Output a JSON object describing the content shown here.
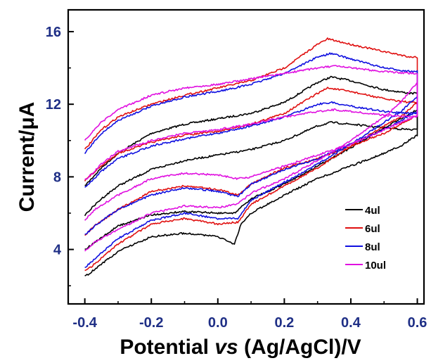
{
  "chart_data": {
    "type": "line",
    "title": "",
    "xlabel_main": "Potential ",
    "xlabel_italic": "vs",
    "xlabel_rest": " (Ag/AgCl)/V",
    "ylabel": "Current/μA",
    "xlim": [
      -0.45,
      0.62
    ],
    "ylim": [
      1.0,
      17.2
    ],
    "xticks": [
      -0.4,
      -0.2,
      0.0,
      0.2,
      0.4,
      0.6
    ],
    "xtick_labels": [
      "-0.4",
      "-0.2",
      "0.0",
      "0.2",
      "0.4",
      "0.6"
    ],
    "yticks": [
      4,
      8,
      12,
      16
    ],
    "ytick_labels": [
      "4",
      "8",
      "12",
      "16"
    ],
    "grid": false,
    "legend_position": "bottom-right",
    "colors": {
      "axis": "#000000",
      "tick_labels": "#1f2f86"
    },
    "series": [
      {
        "name": "4ul",
        "color": "#000000",
        "loops": [
          {
            "forward": [
              [
                -0.4,
                7.5
              ],
              [
                -0.35,
                8.5
              ],
              [
                -0.3,
                9.3
              ],
              [
                -0.2,
                10.4
              ],
              [
                -0.1,
                10.9
              ],
              [
                0.0,
                11.2
              ],
              [
                0.1,
                11.5
              ],
              [
                0.2,
                12.1
              ],
              [
                0.3,
                13.2
              ],
              [
                0.34,
                13.5
              ],
              [
                0.4,
                13.3
              ],
              [
                0.5,
                12.8
              ],
              [
                0.58,
                12.6
              ],
              [
                0.6,
                12.6
              ]
            ],
            "reverse": [
              [
                0.6,
                10.3
              ],
              [
                0.55,
                9.7
              ],
              [
                0.5,
                9.3
              ],
              [
                0.4,
                8.6
              ],
              [
                0.3,
                7.9
              ],
              [
                0.2,
                7.0
              ],
              [
                0.1,
                6.0
              ],
              [
                0.07,
                5.4
              ],
              [
                0.05,
                4.3
              ],
              [
                0.0,
                4.7
              ],
              [
                -0.1,
                4.9
              ],
              [
                -0.2,
                4.7
              ],
              [
                -0.3,
                3.9
              ],
              [
                -0.37,
                2.9
              ],
              [
                -0.4,
                2.5
              ]
            ]
          },
          {
            "forward": [
              [
                -0.4,
                5.9
              ],
              [
                -0.35,
                6.8
              ],
              [
                -0.3,
                7.5
              ],
              [
                -0.2,
                8.4
              ],
              [
                -0.1,
                8.9
              ],
              [
                0.0,
                9.2
              ],
              [
                0.1,
                9.5
              ],
              [
                0.2,
                10.0
              ],
              [
                0.3,
                10.8
              ],
              [
                0.34,
                11.0
              ],
              [
                0.4,
                10.9
              ],
              [
                0.5,
                10.7
              ],
              [
                0.58,
                10.6
              ],
              [
                0.6,
                10.6
              ]
            ],
            "reverse": [
              [
                0.6,
                11.7
              ],
              [
                0.55,
                11.2
              ],
              [
                0.5,
                10.7
              ],
              [
                0.4,
                9.6
              ],
              [
                0.3,
                8.6
              ],
              [
                0.2,
                7.6
              ],
              [
                0.1,
                6.8
              ],
              [
                0.05,
                6.0
              ],
              [
                0.0,
                6.0
              ],
              [
                -0.1,
                6.1
              ],
              [
                -0.2,
                5.9
              ],
              [
                -0.3,
                5.3
              ],
              [
                -0.37,
                4.4
              ],
              [
                -0.4,
                4.0
              ]
            ]
          }
        ]
      },
      {
        "name": "6ul",
        "color": "#e01010",
        "loops": [
          {
            "forward": [
              [
                -0.4,
                9.5
              ],
              [
                -0.35,
                10.6
              ],
              [
                -0.3,
                11.3
              ],
              [
                -0.2,
                12.0
              ],
              [
                -0.1,
                12.5
              ],
              [
                0.0,
                12.9
              ],
              [
                0.1,
                13.3
              ],
              [
                0.2,
                14.0
              ],
              [
                0.3,
                15.3
              ],
              [
                0.33,
                15.6
              ],
              [
                0.4,
                15.3
              ],
              [
                0.5,
                14.9
              ],
              [
                0.58,
                14.6
              ],
              [
                0.6,
                14.6
              ]
            ],
            "reverse": [
              [
                0.6,
                11.4
              ],
              [
                0.55,
                10.9
              ],
              [
                0.5,
                10.4
              ],
              [
                0.4,
                9.7
              ],
              [
                0.3,
                9.0
              ],
              [
                0.2,
                8.5
              ],
              [
                0.1,
                7.6
              ],
              [
                0.06,
                7.0
              ],
              [
                0.0,
                7.3
              ],
              [
                -0.1,
                7.5
              ],
              [
                -0.2,
                7.2
              ],
              [
                -0.3,
                6.2
              ],
              [
                -0.37,
                5.3
              ],
              [
                -0.4,
                4.8
              ]
            ]
          },
          {
            "forward": [
              [
                -0.4,
                7.8
              ],
              [
                -0.35,
                8.6
              ],
              [
                -0.3,
                9.3
              ],
              [
                -0.2,
                9.9
              ],
              [
                -0.1,
                10.3
              ],
              [
                0.0,
                10.5
              ],
              [
                0.1,
                10.9
              ],
              [
                0.2,
                11.5
              ],
              [
                0.3,
                12.6
              ],
              [
                0.33,
                12.9
              ],
              [
                0.4,
                12.7
              ],
              [
                0.5,
                12.3
              ],
              [
                0.58,
                12.1
              ],
              [
                0.6,
                12.1
              ]
            ],
            "reverse": [
              [
                0.6,
                12.1
              ],
              [
                0.55,
                11.3
              ],
              [
                0.5,
                10.8
              ],
              [
                0.4,
                9.7
              ],
              [
                0.3,
                8.5
              ],
              [
                0.2,
                7.5
              ],
              [
                0.1,
                6.5
              ],
              [
                0.06,
                5.5
              ],
              [
                0.0,
                5.4
              ],
              [
                -0.1,
                5.7
              ],
              [
                -0.2,
                5.4
              ],
              [
                -0.3,
                4.3
              ],
              [
                -0.37,
                3.2
              ],
              [
                -0.4,
                2.8
              ]
            ]
          }
        ]
      },
      {
        "name": "8ul",
        "color": "#1010e0",
        "loops": [
          {
            "forward": [
              [
                -0.4,
                9.3
              ],
              [
                -0.35,
                10.4
              ],
              [
                -0.3,
                11.1
              ],
              [
                -0.2,
                11.9
              ],
              [
                -0.1,
                12.4
              ],
              [
                0.0,
                12.7
              ],
              [
                0.1,
                13.1
              ],
              [
                0.2,
                13.7
              ],
              [
                0.3,
                14.6
              ],
              [
                0.34,
                14.8
              ],
              [
                0.4,
                14.5
              ],
              [
                0.5,
                14.0
              ],
              [
                0.58,
                13.8
              ],
              [
                0.6,
                13.8
              ]
            ],
            "reverse": [
              [
                0.6,
                11.6
              ],
              [
                0.55,
                11.1
              ],
              [
                0.5,
                10.6
              ],
              [
                0.4,
                9.8
              ],
              [
                0.3,
                9.0
              ],
              [
                0.2,
                8.4
              ],
              [
                0.1,
                7.6
              ],
              [
                0.06,
                6.9
              ],
              [
                0.0,
                7.2
              ],
              [
                -0.1,
                7.4
              ],
              [
                -0.2,
                7.0
              ],
              [
                -0.3,
                6.2
              ],
              [
                -0.37,
                5.3
              ],
              [
                -0.4,
                4.8
              ]
            ]
          },
          {
            "forward": [
              [
                -0.4,
                7.4
              ],
              [
                -0.35,
                8.3
              ],
              [
                -0.3,
                9.0
              ],
              [
                -0.2,
                9.7
              ],
              [
                -0.1,
                10.1
              ],
              [
                0.0,
                10.4
              ],
              [
                0.1,
                10.8
              ],
              [
                0.2,
                11.3
              ],
              [
                0.3,
                12.0
              ],
              [
                0.34,
                12.1
              ],
              [
                0.4,
                11.9
              ],
              [
                0.5,
                11.6
              ],
              [
                0.58,
                11.5
              ],
              [
                0.6,
                11.5
              ]
            ],
            "reverse": [
              [
                0.6,
                12.4
              ],
              [
                0.55,
                11.6
              ],
              [
                0.5,
                11.0
              ],
              [
                0.4,
                9.8
              ],
              [
                0.3,
                8.7
              ],
              [
                0.2,
                7.7
              ],
              [
                0.1,
                6.7
              ],
              [
                0.06,
                5.7
              ],
              [
                0.0,
                5.7
              ],
              [
                -0.1,
                6.0
              ],
              [
                -0.2,
                5.6
              ],
              [
                -0.3,
                4.6
              ],
              [
                -0.37,
                3.5
              ],
              [
                -0.4,
                3.0
              ]
            ]
          }
        ]
      },
      {
        "name": "10ul",
        "color": "#e010e0",
        "loops": [
          {
            "forward": [
              [
                -0.4,
                10.0
              ],
              [
                -0.35,
                11.0
              ],
              [
                -0.3,
                11.7
              ],
              [
                -0.2,
                12.5
              ],
              [
                -0.1,
                12.9
              ],
              [
                0.0,
                13.1
              ],
              [
                0.1,
                13.4
              ],
              [
                0.2,
                13.7
              ],
              [
                0.3,
                14.0
              ],
              [
                0.35,
                14.1
              ],
              [
                0.4,
                14.0
              ],
              [
                0.5,
                13.8
              ],
              [
                0.58,
                13.7
              ],
              [
                0.6,
                13.7
              ]
            ],
            "reverse": [
              [
                0.6,
                11.4
              ],
              [
                0.55,
                11.0
              ],
              [
                0.5,
                10.6
              ],
              [
                0.4,
                9.8
              ],
              [
                0.3,
                9.2
              ],
              [
                0.2,
                8.6
              ],
              [
                0.1,
                8.0
              ],
              [
                0.06,
                7.9
              ],
              [
                0.0,
                8.1
              ],
              [
                -0.1,
                8.2
              ],
              [
                -0.2,
                7.9
              ],
              [
                -0.3,
                7.0
              ],
              [
                -0.37,
                6.2
              ],
              [
                -0.4,
                5.6
              ]
            ]
          },
          {
            "forward": [
              [
                -0.4,
                7.8
              ],
              [
                -0.35,
                8.7
              ],
              [
                -0.3,
                9.4
              ],
              [
                -0.2,
                10.0
              ],
              [
                -0.1,
                10.4
              ],
              [
                0.0,
                10.6
              ],
              [
                0.1,
                10.9
              ],
              [
                0.2,
                11.3
              ],
              [
                0.3,
                11.6
              ],
              [
                0.35,
                11.7
              ],
              [
                0.4,
                11.6
              ],
              [
                0.5,
                11.4
              ],
              [
                0.58,
                11.3
              ],
              [
                0.6,
                11.3
              ]
            ],
            "reverse": [
              [
                0.6,
                13.2
              ],
              [
                0.55,
                12.1
              ],
              [
                0.5,
                11.3
              ],
              [
                0.4,
                10.0
              ],
              [
                0.3,
                8.9
              ],
              [
                0.2,
                7.9
              ],
              [
                0.1,
                7.1
              ],
              [
                0.06,
                6.5
              ],
              [
                0.0,
                6.3
              ],
              [
                -0.1,
                6.4
              ],
              [
                -0.2,
                6.0
              ],
              [
                -0.3,
                5.1
              ],
              [
                -0.37,
                4.4
              ],
              [
                -0.4,
                3.9
              ]
            ]
          }
        ]
      }
    ]
  }
}
